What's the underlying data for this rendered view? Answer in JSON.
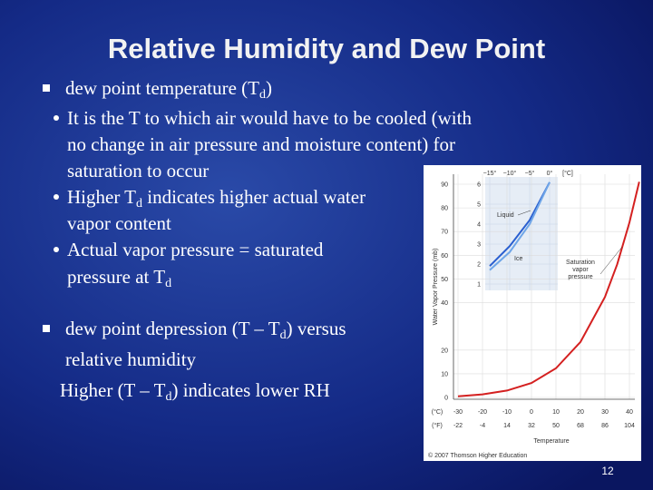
{
  "title": "Relative Humidity and Dew Point",
  "bullets": [
    {
      "lines": [
        [
          {
            "t": "dew point temperature (T"
          },
          {
            "sub": "d"
          },
          {
            "t": ")"
          }
        ]
      ],
      "sub_bullets": [
        {
          "lines": [
            [
              {
                "t": "It is the T to which air would have to be cooled (with"
              }
            ],
            [
              {
                "t": "no change in air pressure and moisture content) for"
              }
            ],
            [
              {
                "t": "saturation to occur"
              }
            ]
          ]
        },
        {
          "lines": [
            [
              {
                "t": "Higher T"
              },
              {
                "sub": "d"
              },
              {
                "t": " indicates higher actual water"
              }
            ],
            [
              {
                "t": "vapor content"
              }
            ]
          ]
        },
        {
          "lines": [
            [
              {
                "t": "Actual vapor pressure = saturated"
              }
            ],
            [
              {
                "t": "pressure at T"
              },
              {
                "sub": "d"
              }
            ]
          ]
        }
      ]
    },
    {
      "lines": [
        [
          {
            "t": "dew point depression (T – T"
          },
          {
            "sub": "d"
          },
          {
            "t": ") versus"
          }
        ],
        [
          {
            "t": "relative humidity"
          }
        ]
      ],
      "note": [
        {
          "t": "Higher (T – T"
        },
        {
          "sub": "d"
        },
        {
          "t": ") indicates lower RH"
        }
      ]
    }
  ],
  "figure": {
    "y_label": "Water Vapor Pressure (mb)",
    "x_label": "Temperature",
    "yticks": [
      0,
      10,
      20,
      40,
      50,
      60,
      70,
      80,
      90
    ],
    "c_unit": "(°C)",
    "f_unit": "(°F)",
    "xticks_c": [
      -30,
      -20,
      -10,
      0,
      10,
      20,
      30,
      40
    ],
    "xticks_f": [
      -22,
      -4,
      14,
      32,
      50,
      68,
      86,
      104
    ],
    "curve": {
      "x": [
        -30,
        -20,
        -10,
        0,
        10,
        20,
        30,
        35,
        40,
        44
      ],
      "y": [
        0.5,
        1.3,
        2.9,
        6.1,
        12.3,
        23.4,
        42.4,
        56.2,
        73.8,
        91
      ]
    },
    "curve_label": [
      "Saturation",
      "vapor",
      "pressure"
    ],
    "inset": {
      "xticks": [
        {
          "value": -15,
          "label": "−15°"
        },
        {
          "value": -10,
          "label": "−10°"
        },
        {
          "value": -5,
          "label": "−5°"
        },
        {
          "value": 0,
          "label": "0°"
        }
      ],
      "x_unit": "[°C]",
      "yticks": [
        1,
        2,
        3,
        4,
        5,
        6
      ],
      "x": [
        -15,
        -10,
        -5,
        0
      ],
      "liquid": {
        "name": "Liquid",
        "color": "#2a5fd0",
        "values": [
          1.9,
          2.9,
          4.2,
          6.1
        ]
      },
      "ice": {
        "name": "Ice",
        "color": "#6fa6e8",
        "values": [
          1.7,
          2.6,
          4.0,
          6.1
        ]
      }
    },
    "curve_color": "#d42020",
    "credit": "© 2007 Thomson Higher Education"
  },
  "page_number": "12"
}
